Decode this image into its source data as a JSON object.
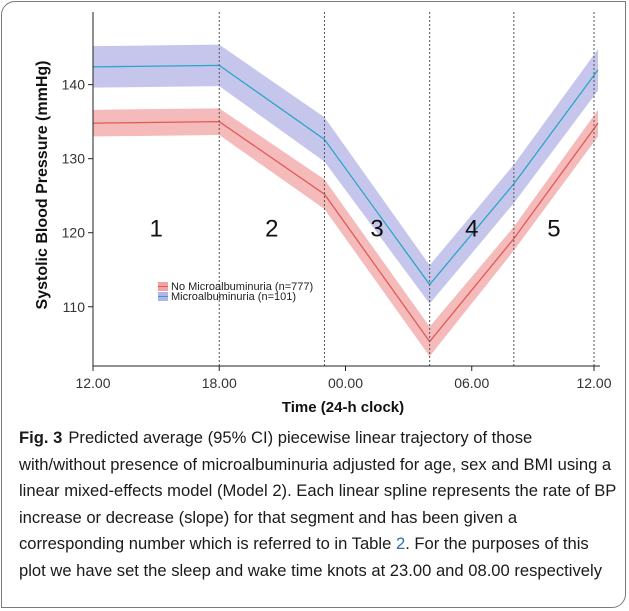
{
  "chart_data": {
    "type": "line",
    "xlabel": "Time (24-h clock)",
    "ylabel": "Systolic Blood Pressure (mmHg)",
    "x": [
      "12.00",
      "18.00",
      "23.00",
      "04.00",
      "08.00",
      "12.00"
    ],
    "x_ticks": [
      "12.00",
      "18.00",
      "00.00",
      "06.00",
      "12.00"
    ],
    "y_ticks": [
      110,
      120,
      130,
      140
    ],
    "ylim": [
      102,
      149
    ],
    "segment_labels": [
      "1",
      "2",
      "3",
      "4",
      "5"
    ],
    "knots": [
      "18.00",
      "23.00",
      "04.00",
      "08.00",
      "12.00"
    ],
    "series": [
      {
        "name": "No Microalbuminuria (n=777)",
        "color": "#e05a56",
        "band_color": "#f2a3a3",
        "values": [
          134.8,
          135.0,
          125.2,
          105.3,
          119.2,
          134.8
        ],
        "lower": [
          133.0,
          133.2,
          123.2,
          103.3,
          117.6,
          133.0
        ],
        "upper": [
          136.6,
          136.8,
          127.2,
          107.3,
          120.8,
          136.6
        ]
      },
      {
        "name": "Microalbuminuria (n=101)",
        "color": "#2aa6c8",
        "band_color": "#b3b3e6",
        "values": [
          142.4,
          142.6,
          132.6,
          113.0,
          126.6,
          142.0
        ],
        "lower": [
          139.6,
          139.8,
          129.6,
          110.4,
          124.0,
          139.2
        ],
        "upper": [
          145.2,
          145.4,
          135.6,
          115.6,
          129.2,
          144.8
        ]
      }
    ],
    "legend_position": "bottom-left",
    "grid": false
  },
  "caption": {
    "label": "Fig. 3",
    "text_before": "Predicted average (95% CI) piecewise linear trajectory of those with/without presence of microalbuminuria adjusted for age, sex and BMI using a linear mixed-effects model (Model 2). Each linear spline represents the rate of BP increase or decrease (slope) for that segment and has been given a corresponding number which is referred to in Table ",
    "table_ref": "2",
    "text_after": ". For the purposes of this plot we have set the sleep and wake time knots at 23.00 and 08.00 respectively"
  }
}
